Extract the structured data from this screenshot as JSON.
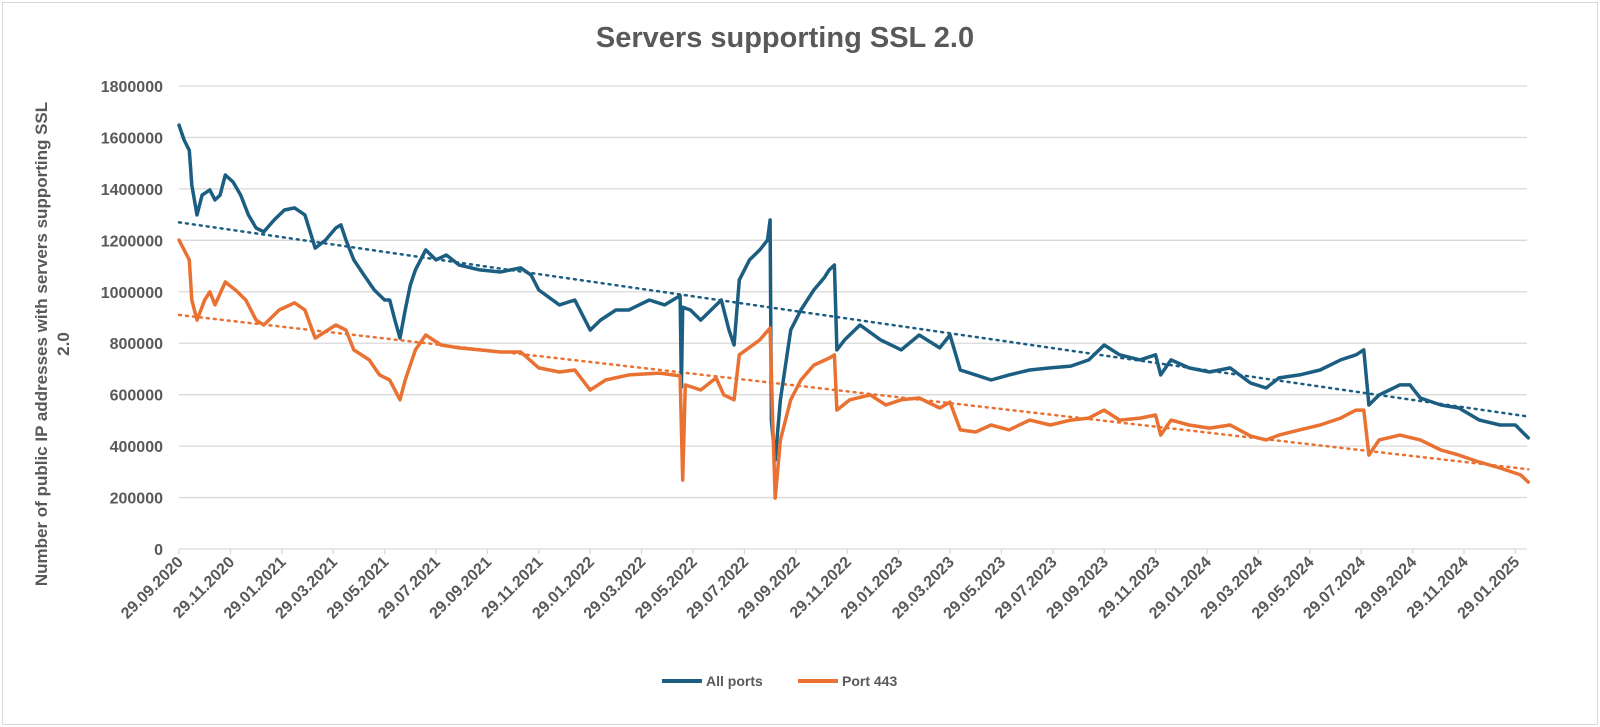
{
  "chart_data": {
    "type": "line",
    "title": "Servers supporting SSL 2.0",
    "xlabel": "",
    "ylabel_line1": "Number of public IP addresses with servers supporting SSL",
    "ylabel_line2": "2.0",
    "x_unit": "months since 29.09.2020",
    "ylim": [
      0,
      1800000
    ],
    "yticks": [
      "0",
      "200000",
      "400000",
      "600000",
      "800000",
      "1000000",
      "1200000",
      "1400000",
      "1600000",
      "1800000"
    ],
    "ytick_values": [
      0,
      200000,
      400000,
      600000,
      800000,
      1000000,
      1200000,
      1400000,
      1600000,
      1800000
    ],
    "xticks": [
      "29.09.2020",
      "29.11.2020",
      "29.01.2021",
      "29.03.2021",
      "29.05.2021",
      "29.07.2021",
      "29.09.2021",
      "29.11.2021",
      "29.01.2022",
      "29.03.2022",
      "29.05.2022",
      "29.07.2022",
      "29.09.2022",
      "29.11.2022",
      "29.01.2023",
      "29.03.2023",
      "29.05.2023",
      "29.07.2023",
      "29.09.2023",
      "29.11.2023",
      "29.01.2024",
      "29.03.2024",
      "29.05.2024",
      "29.07.2024",
      "29.09.2024",
      "29.11.2024",
      "29.01.2025"
    ],
    "xlim": [
      0,
      52.5
    ],
    "grid": true,
    "legend_position": "bottom",
    "series": [
      {
        "name": "All ports",
        "color": "#1b5e82",
        "trend": [
          1270000,
          515000
        ],
        "points": [
          [
            0,
            1648000
          ],
          [
            0.2,
            1590000
          ],
          [
            0.4,
            1550000
          ],
          [
            0.5,
            1415000
          ],
          [
            0.7,
            1299000
          ],
          [
            0.9,
            1376000
          ],
          [
            1.2,
            1396000
          ],
          [
            1.4,
            1357000
          ],
          [
            1.6,
            1376000
          ],
          [
            1.8,
            1454000
          ],
          [
            2.1,
            1427000
          ],
          [
            2.4,
            1376000
          ],
          [
            2.7,
            1299000
          ],
          [
            3.0,
            1248000
          ],
          [
            3.3,
            1233000
          ],
          [
            3.7,
            1279000
          ],
          [
            4.1,
            1318000
          ],
          [
            4.5,
            1326000
          ],
          [
            4.9,
            1299000
          ],
          [
            5.3,
            1170000
          ],
          [
            5.7,
            1201000
          ],
          [
            6.1,
            1248000
          ],
          [
            6.3,
            1260000
          ],
          [
            6.5,
            1201000
          ],
          [
            6.8,
            1124000
          ],
          [
            7.2,
            1065000
          ],
          [
            7.6,
            1007000
          ],
          [
            8.0,
            968000
          ],
          [
            8.2,
            968000
          ],
          [
            8.4,
            890000
          ],
          [
            8.6,
            820000
          ],
          [
            8.8,
            929000
          ],
          [
            9.0,
            1026000
          ],
          [
            9.2,
            1085000
          ],
          [
            9.6,
            1163000
          ],
          [
            10.0,
            1124000
          ],
          [
            10.4,
            1143000
          ],
          [
            10.9,
            1104000
          ],
          [
            11.7,
            1085000
          ],
          [
            12.5,
            1077000
          ],
          [
            13.3,
            1093000
          ],
          [
            13.7,
            1065000
          ],
          [
            14.0,
            1007000
          ],
          [
            14.8,
            949000
          ],
          [
            15.4,
            968000
          ],
          [
            16.0,
            851000
          ],
          [
            16.4,
            890000
          ],
          [
            17.0,
            929000
          ],
          [
            17.5,
            929000
          ],
          [
            18.3,
            968000
          ],
          [
            18.9,
            949000
          ],
          [
            19.5,
            985000
          ],
          [
            19.55,
            630000
          ],
          [
            19.6,
            940000
          ],
          [
            19.9,
            929000
          ],
          [
            20.3,
            890000
          ],
          [
            21.1,
            968000
          ],
          [
            21.4,
            851000
          ],
          [
            21.6,
            793000
          ],
          [
            21.8,
            1046000
          ],
          [
            22.2,
            1124000
          ],
          [
            22.6,
            1163000
          ],
          [
            22.9,
            1201000
          ],
          [
            23.0,
            1279000
          ],
          [
            23.05,
            500000
          ],
          [
            23.2,
            346000
          ],
          [
            23.4,
            580000
          ],
          [
            23.8,
            851000
          ],
          [
            24.2,
            929000
          ],
          [
            24.7,
            1007000
          ],
          [
            25.1,
            1054000
          ],
          [
            25.3,
            1085000
          ],
          [
            25.5,
            1104000
          ],
          [
            25.6,
            774000
          ],
          [
            25.9,
            813000
          ],
          [
            26.5,
            871000
          ],
          [
            27.3,
            813000
          ],
          [
            28.1,
            774000
          ],
          [
            28.8,
            832000
          ],
          [
            29.6,
            782000
          ],
          [
            30.0,
            832000
          ],
          [
            30.4,
            696000
          ],
          [
            31.0,
            677000
          ],
          [
            31.6,
            657000
          ],
          [
            32.3,
            677000
          ],
          [
            33.1,
            696000
          ],
          [
            33.9,
            704000
          ],
          [
            34.7,
            711000
          ],
          [
            35.4,
            735000
          ],
          [
            36.0,
            793000
          ],
          [
            36.6,
            755000
          ],
          [
            37.4,
            735000
          ],
          [
            38.0,
            755000
          ],
          [
            38.2,
            677000
          ],
          [
            38.6,
            735000
          ],
          [
            39.3,
            704000
          ],
          [
            40.1,
            688000
          ],
          [
            40.9,
            704000
          ],
          [
            41.7,
            645000
          ],
          [
            42.3,
            626000
          ],
          [
            42.8,
            665000
          ],
          [
            43.6,
            677000
          ],
          [
            44.4,
            696000
          ],
          [
            45.2,
            735000
          ],
          [
            45.8,
            755000
          ],
          [
            46.1,
            774000
          ],
          [
            46.3,
            560000
          ],
          [
            46.7,
            599000
          ],
          [
            47.1,
            618000
          ],
          [
            47.5,
            638000
          ],
          [
            47.9,
            638000
          ],
          [
            48.3,
            587000
          ],
          [
            49.1,
            560000
          ],
          [
            49.8,
            548000
          ],
          [
            50.6,
            501000
          ],
          [
            51.4,
            482000
          ],
          [
            52.0,
            482000
          ],
          [
            52.5,
            432000
          ]
        ]
      },
      {
        "name": "Port 443",
        "color": "#e97132",
        "trend": [
          910000,
          310000
        ],
        "points": [
          [
            0,
            1201000
          ],
          [
            0.4,
            1124000
          ],
          [
            0.5,
            968000
          ],
          [
            0.7,
            890000
          ],
          [
            1.0,
            968000
          ],
          [
            1.2,
            1000000
          ],
          [
            1.4,
            949000
          ],
          [
            1.8,
            1038000
          ],
          [
            2.2,
            1007000
          ],
          [
            2.6,
            968000
          ],
          [
            3.0,
            890000
          ],
          [
            3.3,
            871000
          ],
          [
            3.9,
            929000
          ],
          [
            4.5,
            957000
          ],
          [
            4.9,
            929000
          ],
          [
            5.3,
            820000
          ],
          [
            6.1,
            871000
          ],
          [
            6.5,
            851000
          ],
          [
            6.8,
            774000
          ],
          [
            7.4,
            735000
          ],
          [
            7.8,
            677000
          ],
          [
            8.2,
            657000
          ],
          [
            8.6,
            580000
          ],
          [
            8.8,
            657000
          ],
          [
            9.2,
            774000
          ],
          [
            9.6,
            832000
          ],
          [
            10.2,
            793000
          ],
          [
            10.9,
            782000
          ],
          [
            11.7,
            774000
          ],
          [
            12.5,
            766000
          ],
          [
            13.3,
            766000
          ],
          [
            14.0,
            704000
          ],
          [
            14.8,
            688000
          ],
          [
            15.4,
            696000
          ],
          [
            16.0,
            618000
          ],
          [
            16.6,
            657000
          ],
          [
            17.5,
            677000
          ],
          [
            18.7,
            684000
          ],
          [
            19.5,
            673000
          ],
          [
            19.6,
            268000
          ],
          [
            19.7,
            638000
          ],
          [
            20.3,
            618000
          ],
          [
            20.9,
            665000
          ],
          [
            21.2,
            599000
          ],
          [
            21.6,
            580000
          ],
          [
            21.8,
            755000
          ],
          [
            22.6,
            813000
          ],
          [
            23.0,
            859000
          ],
          [
            23.1,
            500000
          ],
          [
            23.2,
            198000
          ],
          [
            23.4,
            424000
          ],
          [
            23.8,
            580000
          ],
          [
            24.2,
            657000
          ],
          [
            24.7,
            715000
          ],
          [
            25.3,
            742000
          ],
          [
            25.5,
            755000
          ],
          [
            25.6,
            540000
          ],
          [
            26.1,
            580000
          ],
          [
            26.9,
            599000
          ],
          [
            27.5,
            560000
          ],
          [
            28.1,
            580000
          ],
          [
            28.8,
            587000
          ],
          [
            29.6,
            548000
          ],
          [
            30.0,
            571000
          ],
          [
            30.4,
            463000
          ],
          [
            31.0,
            455000
          ],
          [
            31.6,
            482000
          ],
          [
            32.3,
            463000
          ],
          [
            33.1,
            501000
          ],
          [
            33.9,
            482000
          ],
          [
            34.7,
            501000
          ],
          [
            35.4,
            509000
          ],
          [
            36.0,
            540000
          ],
          [
            36.6,
            501000
          ],
          [
            37.4,
            509000
          ],
          [
            38.0,
            521000
          ],
          [
            38.2,
            443000
          ],
          [
            38.6,
            501000
          ],
          [
            39.3,
            482000
          ],
          [
            40.1,
            470000
          ],
          [
            40.9,
            482000
          ],
          [
            41.7,
            439000
          ],
          [
            42.3,
            424000
          ],
          [
            42.8,
            443000
          ],
          [
            43.6,
            463000
          ],
          [
            44.4,
            482000
          ],
          [
            45.2,
            509000
          ],
          [
            45.8,
            540000
          ],
          [
            46.1,
            540000
          ],
          [
            46.3,
            365000
          ],
          [
            46.7,
            424000
          ],
          [
            47.5,
            443000
          ],
          [
            48.3,
            424000
          ],
          [
            49.1,
            385000
          ],
          [
            49.8,
            365000
          ],
          [
            50.6,
            338000
          ],
          [
            51.4,
            315000
          ],
          [
            52.2,
            288000
          ],
          [
            52.5,
            260000
          ]
        ]
      }
    ]
  }
}
